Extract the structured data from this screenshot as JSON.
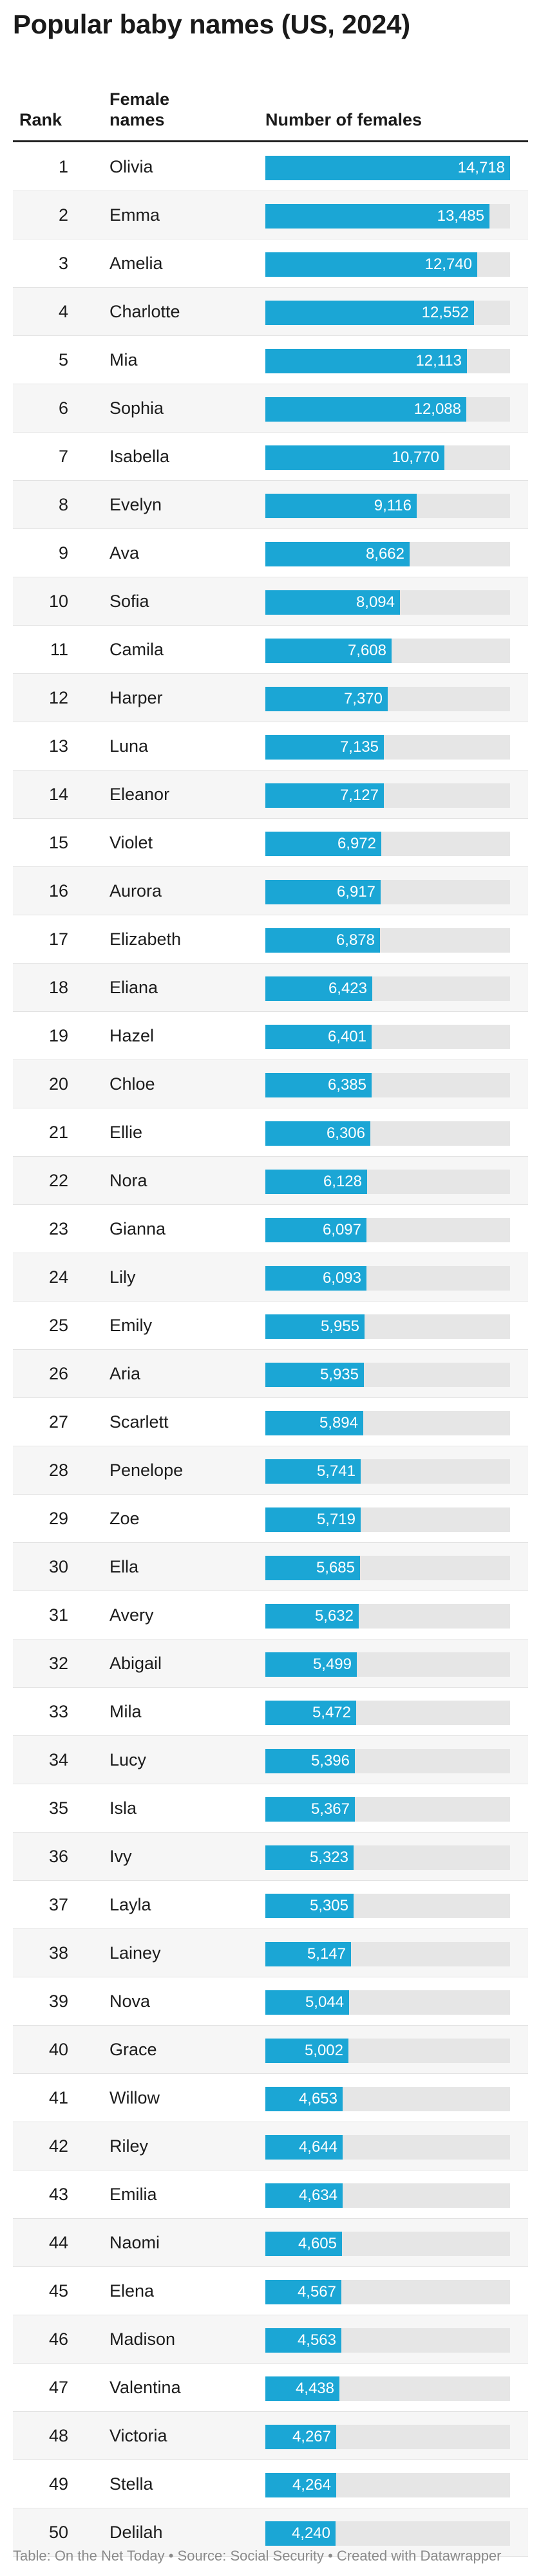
{
  "title": "Popular baby names (US, 2024)",
  "headers": {
    "rank": "Rank",
    "name": "Female names",
    "number": "Number of females"
  },
  "footer": "Table: On the Net Today • Source: Social Security • Created with Datawrapper",
  "colors": {
    "bar": "#1ba6d5",
    "track": "#e6e6e6",
    "row_alt": "#f6f6f6"
  },
  "chart_data": {
    "type": "table",
    "title": "Popular baby names (US, 2024)",
    "columns": [
      "Rank",
      "Female names",
      "Number of females"
    ],
    "value_max": 14718,
    "rows": [
      {
        "rank": 1,
        "name": "Olivia",
        "value": 14718,
        "label": "14,718"
      },
      {
        "rank": 2,
        "name": "Emma",
        "value": 13485,
        "label": "13,485"
      },
      {
        "rank": 3,
        "name": "Amelia",
        "value": 12740,
        "label": "12,740"
      },
      {
        "rank": 4,
        "name": "Charlotte",
        "value": 12552,
        "label": "12,552"
      },
      {
        "rank": 5,
        "name": "Mia",
        "value": 12113,
        "label": "12,113"
      },
      {
        "rank": 6,
        "name": "Sophia",
        "value": 12088,
        "label": "12,088"
      },
      {
        "rank": 7,
        "name": "Isabella",
        "value": 10770,
        "label": "10,770"
      },
      {
        "rank": 8,
        "name": "Evelyn",
        "value": 9116,
        "label": "9,116"
      },
      {
        "rank": 9,
        "name": "Ava",
        "value": 8662,
        "label": "8,662"
      },
      {
        "rank": 10,
        "name": "Sofia",
        "value": 8094,
        "label": "8,094"
      },
      {
        "rank": 11,
        "name": "Camila",
        "value": 7608,
        "label": "7,608"
      },
      {
        "rank": 12,
        "name": "Harper",
        "value": 7370,
        "label": "7,370"
      },
      {
        "rank": 13,
        "name": "Luna",
        "value": 7135,
        "label": "7,135"
      },
      {
        "rank": 14,
        "name": "Eleanor",
        "value": 7127,
        "label": "7,127"
      },
      {
        "rank": 15,
        "name": "Violet",
        "value": 6972,
        "label": "6,972"
      },
      {
        "rank": 16,
        "name": "Aurora",
        "value": 6917,
        "label": "6,917"
      },
      {
        "rank": 17,
        "name": "Elizabeth",
        "value": 6878,
        "label": "6,878"
      },
      {
        "rank": 18,
        "name": "Eliana",
        "value": 6423,
        "label": "6,423"
      },
      {
        "rank": 19,
        "name": "Hazel",
        "value": 6401,
        "label": "6,401"
      },
      {
        "rank": 20,
        "name": "Chloe",
        "value": 6385,
        "label": "6,385"
      },
      {
        "rank": 21,
        "name": "Ellie",
        "value": 6306,
        "label": "6,306"
      },
      {
        "rank": 22,
        "name": "Nora",
        "value": 6128,
        "label": "6,128"
      },
      {
        "rank": 23,
        "name": "Gianna",
        "value": 6097,
        "label": "6,097"
      },
      {
        "rank": 24,
        "name": "Lily",
        "value": 6093,
        "label": "6,093"
      },
      {
        "rank": 25,
        "name": "Emily",
        "value": 5955,
        "label": "5,955"
      },
      {
        "rank": 26,
        "name": "Aria",
        "value": 5935,
        "label": "5,935"
      },
      {
        "rank": 27,
        "name": "Scarlett",
        "value": 5894,
        "label": "5,894"
      },
      {
        "rank": 28,
        "name": "Penelope",
        "value": 5741,
        "label": "5,741"
      },
      {
        "rank": 29,
        "name": "Zoe",
        "value": 5719,
        "label": "5,719"
      },
      {
        "rank": 30,
        "name": "Ella",
        "value": 5685,
        "label": "5,685"
      },
      {
        "rank": 31,
        "name": "Avery",
        "value": 5632,
        "label": "5,632"
      },
      {
        "rank": 32,
        "name": "Abigail",
        "value": 5499,
        "label": "5,499"
      },
      {
        "rank": 33,
        "name": "Mila",
        "value": 5472,
        "label": "5,472"
      },
      {
        "rank": 34,
        "name": "Lucy",
        "value": 5396,
        "label": "5,396"
      },
      {
        "rank": 35,
        "name": "Isla",
        "value": 5367,
        "label": "5,367"
      },
      {
        "rank": 36,
        "name": "Ivy",
        "value": 5323,
        "label": "5,323"
      },
      {
        "rank": 37,
        "name": "Layla",
        "value": 5305,
        "label": "5,305"
      },
      {
        "rank": 38,
        "name": "Lainey",
        "value": 5147,
        "label": "5,147"
      },
      {
        "rank": 39,
        "name": "Nova",
        "value": 5044,
        "label": "5,044"
      },
      {
        "rank": 40,
        "name": "Grace",
        "value": 5002,
        "label": "5,002"
      },
      {
        "rank": 41,
        "name": "Willow",
        "value": 4653,
        "label": "4,653"
      },
      {
        "rank": 42,
        "name": "Riley",
        "value": 4644,
        "label": "4,644"
      },
      {
        "rank": 43,
        "name": "Emilia",
        "value": 4634,
        "label": "4,634"
      },
      {
        "rank": 44,
        "name": "Naomi",
        "value": 4605,
        "label": "4,605"
      },
      {
        "rank": 45,
        "name": "Elena",
        "value": 4567,
        "label": "4,567"
      },
      {
        "rank": 46,
        "name": "Madison",
        "value": 4563,
        "label": "4,563"
      },
      {
        "rank": 47,
        "name": "Valentina",
        "value": 4438,
        "label": "4,438"
      },
      {
        "rank": 48,
        "name": "Victoria",
        "value": 4267,
        "label": "4,267"
      },
      {
        "rank": 49,
        "name": "Stella",
        "value": 4264,
        "label": "4,264"
      },
      {
        "rank": 50,
        "name": "Delilah",
        "value": 4240,
        "label": "4,240"
      }
    ]
  }
}
